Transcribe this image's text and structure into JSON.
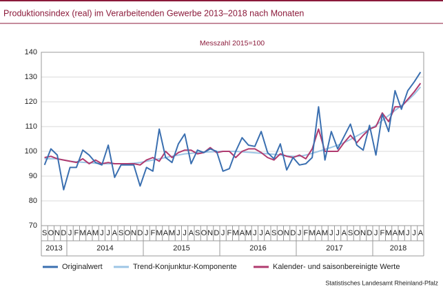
{
  "chart_data": {
    "type": "line",
    "title": "Produktionsindex (real) im Verarbeitenden Gewerbe 2013–2018 nach Monaten",
    "subtitle": "Messzahl 2015=100",
    "source": "Statistisches Landesamt Rheinland-Pfalz",
    "categories": [
      "S",
      "O",
      "N",
      "D",
      "J",
      "F",
      "M",
      "A",
      "M",
      "J",
      "J",
      "A",
      "S",
      "O",
      "N",
      "D",
      "J",
      "F",
      "M",
      "A",
      "M",
      "J",
      "J",
      "A",
      "S",
      "O",
      "N",
      "D",
      "J",
      "F",
      "M",
      "A",
      "M",
      "J",
      "J",
      "A",
      "S",
      "O",
      "N",
      "D",
      "J",
      "F",
      "M",
      "A",
      "M",
      "J",
      "J",
      "A",
      "S",
      "O",
      "N",
      "D",
      "J",
      "F",
      "M",
      "A",
      "M",
      "J",
      "J",
      "A"
    ],
    "years": [
      "2013",
      "2014",
      "2015",
      "2016",
      "2017",
      "2018"
    ],
    "ylim": [
      70,
      140
    ],
    "yticks": [
      70,
      80,
      90,
      100,
      110,
      120,
      130,
      140
    ],
    "grid": true,
    "series": [
      {
        "name": "Originalwert",
        "color": "#3a6fb0",
        "values": [
          94.5,
          101,
          98.5,
          84.5,
          93.5,
          93.5,
          100.5,
          98.5,
          95.5,
          94.5,
          102.5,
          89.5,
          94.5,
          94.5,
          94.5,
          86,
          93.5,
          92,
          109,
          97.5,
          95.5,
          103,
          107,
          95,
          100.5,
          99.5,
          101,
          100,
          92,
          93,
          100,
          105.5,
          102.5,
          102,
          108,
          99.5,
          97,
          103,
          92.5,
          97.5,
          94.5,
          95,
          97.5,
          118,
          96.5,
          108,
          101,
          106,
          111,
          102.5,
          100.5,
          110.5,
          98.5,
          115,
          108,
          124.5,
          117,
          124.5,
          128,
          132
        ]
      },
      {
        "name": "Trend-Konjunktur-Komponente",
        "color": "#9cc5e5",
        "values": [
          97,
          97,
          97,
          96.5,
          96,
          95.8,
          95.6,
          95.4,
          95.2,
          95,
          95,
          95,
          95,
          95,
          95.2,
          95.5,
          96,
          96.5,
          97,
          97.5,
          98,
          98.5,
          99,
          99.2,
          99.5,
          99.7,
          99.8,
          99.9,
          100,
          100,
          100,
          99.8,
          99.6,
          99.4,
          99.2,
          99,
          98.8,
          98.5,
          98.2,
          98,
          98,
          98.5,
          99.2,
          100,
          100.8,
          101.6,
          102.5,
          103.5,
          104.8,
          106.2,
          107.6,
          109,
          110.5,
          112.5,
          114.5,
          116.5,
          118.5,
          120.5,
          123,
          126
        ]
      },
      {
        "name": "Kalender- und saisonbereinigte Werte",
        "color": "#b03a6e",
        "values": [
          97.5,
          98,
          97,
          96.5,
          96,
          95.5,
          97,
          95,
          96.5,
          95,
          95.5,
          95,
          95,
          95,
          95,
          94.5,
          96.5,
          97.5,
          96,
          100,
          97.5,
          99.5,
          100.5,
          100.5,
          99,
          99.5,
          101.5,
          99.5,
          100,
          100,
          97.5,
          100,
          101,
          101,
          99.5,
          97.5,
          96.5,
          99,
          98,
          97.5,
          98.5,
          97,
          101,
          109,
          100,
          100,
          100,
          103.5,
          106.5,
          103.5,
          106.5,
          109,
          110,
          115.5,
          112,
          118,
          118,
          121,
          124,
          127.5
        ]
      }
    ]
  }
}
